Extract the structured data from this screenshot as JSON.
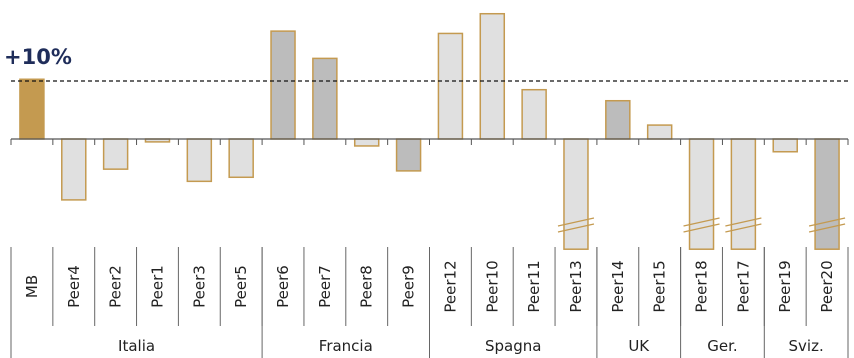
{
  "chart_data": {
    "type": "bar",
    "title": "",
    "xlabel": "",
    "ylabel": "",
    "reference_line": {
      "value": 10,
      "label": "+10%"
    },
    "ylim": [
      -19,
      22
    ],
    "categories": [
      "MB",
      "Peer4",
      "Peer2",
      "Peer1",
      "Peer3",
      "Peer5",
      "Peer6",
      "Peer7",
      "Peer8",
      "Peer9",
      "Peer12",
      "Peer10",
      "Peer11",
      "Peer13",
      "Peer14",
      "Peer15",
      "Peer18",
      "Peer17",
      "Peer19",
      "Peer20"
    ],
    "values": [
      10.3,
      -10.5,
      -5.2,
      -0.5,
      -7.3,
      -6.6,
      18.6,
      13.9,
      -1.2,
      -5.5,
      18.2,
      21.6,
      8.5,
      -19,
      6.6,
      2.4,
      -19,
      -19,
      -2.2,
      -19
    ],
    "truncated": [
      false,
      false,
      false,
      false,
      false,
      false,
      false,
      false,
      false,
      false,
      false,
      false,
      false,
      true,
      false,
      false,
      true,
      true,
      false,
      true
    ],
    "groups": [
      {
        "name": "Italia",
        "count": 6
      },
      {
        "name": "Francia",
        "count": 4
      },
      {
        "name": "Spagna",
        "count": 4
      },
      {
        "name": "UK",
        "count": 2
      },
      {
        "name": "Ger.",
        "count": 2
      },
      {
        "name": "Sviz.",
        "count": 2
      }
    ],
    "bar_styles": [
      "gold",
      "light",
      "light",
      "light",
      "light",
      "light",
      "dark",
      "dark",
      "light",
      "dark",
      "light",
      "light",
      "light",
      "light",
      "dark",
      "light",
      "light",
      "light",
      "light",
      "dark"
    ],
    "colors": {
      "gold": "#c49a50",
      "light": "#e0e0e0",
      "dark": "#bcbcbc",
      "outline": "#c49a50",
      "reference": "#1f2d5a"
    }
  }
}
